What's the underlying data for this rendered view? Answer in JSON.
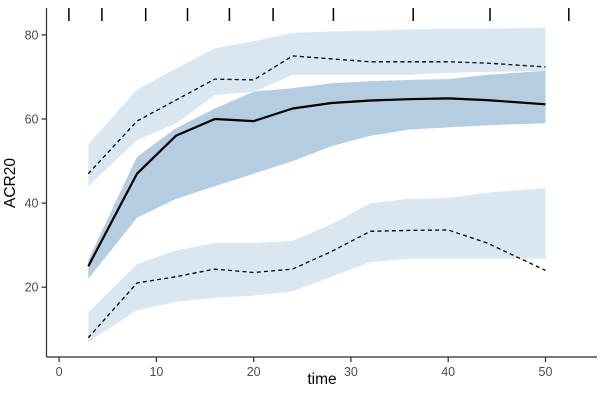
{
  "chart": {
    "x_axis_title": "time",
    "y_axis_title": "ACR20"
  },
  "chart_data": {
    "type": "line",
    "title": "",
    "xlabel": "time",
    "ylabel": "ACR20",
    "xlim": [
      -1.3,
      55.3
    ],
    "ylim": [
      3.4,
      86.4
    ],
    "x_ticks": [
      0,
      10,
      20,
      30,
      40,
      50
    ],
    "y_ticks": [
      20,
      40,
      60,
      80
    ],
    "grid": false,
    "legend": "none",
    "background": "#ffffff",
    "axis_color": "#2b2b2b",
    "tick_label_color": "#4d4d4d",
    "rug_top_x": [
      1,
      4.4,
      8.9,
      13.2,
      17.5,
      22,
      28.2,
      36.4,
      44.3,
      52.4
    ],
    "x": [
      3,
      8,
      12,
      16,
      20,
      24,
      28,
      32,
      36,
      40,
      44,
      50
    ],
    "series": [
      {
        "name": "upper-dashed-ci",
        "line": "dashed",
        "color": "#000000",
        "values": [
          47,
          59.5,
          64.5,
          69.5,
          69.3,
          75,
          74.3,
          73.6,
          73.6,
          73.6,
          73.3,
          72.4
        ],
        "band_hi": [
          54,
          67,
          72,
          76.8,
          78.5,
          80.5,
          80.8,
          81,
          81.3,
          81.5,
          81.5,
          81.7
        ],
        "band_lo": [
          44,
          55,
          58.9,
          65.7,
          66.5,
          70.5,
          70.5,
          70.5,
          70.5,
          71,
          71.2,
          71.5
        ],
        "band_color": "rgba(70,130,180,0.2)"
      },
      {
        "name": "lower-dashed-ci",
        "line": "dashed",
        "color": "#000000",
        "values": [
          8,
          21,
          22.5,
          24.3,
          23.5,
          24.3,
          28.5,
          33.3,
          33.5,
          33.6,
          30.5,
          24
        ],
        "band_hi": [
          14,
          25.5,
          28.8,
          30.5,
          30.5,
          31,
          35,
          40,
          41,
          41.2,
          42.5,
          43.5
        ],
        "band_lo": [
          7,
          14.5,
          16.5,
          17.5,
          18,
          19,
          22.5,
          26,
          26.8,
          26.8,
          26.8,
          26.8
        ],
        "band_color": "rgba(70,130,180,0.2)"
      },
      {
        "name": "fitted-solid-line",
        "line": "solid",
        "color": "#000000",
        "values": [
          25,
          47,
          56,
          60,
          59.5,
          62.5,
          63.8,
          64.4,
          64.7,
          64.9,
          64.5,
          63.5
        ],
        "band_hi": [
          26.5,
          51,
          57.8,
          62.5,
          66.5,
          67.3,
          68.5,
          69,
          69.3,
          69.5,
          70.5,
          71.5
        ],
        "band_lo": [
          22,
          36.5,
          41,
          44,
          47,
          50,
          53.5,
          56,
          57.5,
          58,
          58.5,
          59
        ],
        "band_color": "rgba(70,130,180,0.4)"
      }
    ]
  }
}
